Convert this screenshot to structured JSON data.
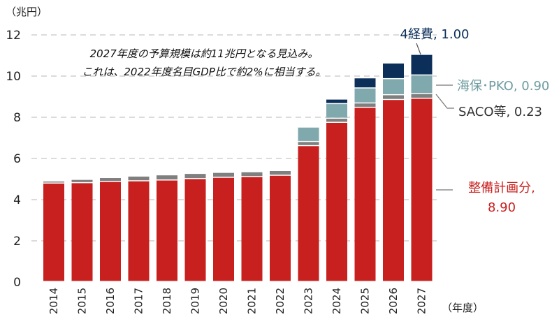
{
  "chart_data": {
    "type": "bar",
    "stacked": true,
    "y_unit_label": "（兆円）",
    "x_unit_label": "（年度）",
    "ylim": [
      0,
      12
    ],
    "yticks": [
      0,
      2,
      4,
      6,
      8,
      10,
      12
    ],
    "grid": true,
    "categories": [
      "2014",
      "2015",
      "2016",
      "2017",
      "2018",
      "2019",
      "2020",
      "2021",
      "2022",
      "2023",
      "2024",
      "2025",
      "2026",
      "2027"
    ],
    "annotation": [
      "2027年度の予算規模は約11兆円となる見込み。",
      "これは、2022年度名目GDP比で約2%に相当する。"
    ],
    "series": [
      {
        "name": "整備計画分",
        "color": "#C8201E",
        "values": [
          4.78,
          4.8,
          4.86,
          4.89,
          4.93,
          5.0,
          5.06,
          5.1,
          5.16,
          6.6,
          7.73,
          8.46,
          8.84,
          8.9
        ]
      },
      {
        "name": "SACO等",
        "color": "#7F7F7F",
        "values": [
          0.1,
          0.16,
          0.19,
          0.23,
          0.25,
          0.25,
          0.24,
          0.23,
          0.23,
          0.2,
          0.2,
          0.21,
          0.23,
          0.23
        ]
      },
      {
        "name": "海保･PKO",
        "color": "#80A9AD",
        "values": [
          0,
          0,
          0,
          0,
          0,
          0,
          0,
          0,
          0,
          0.7,
          0.71,
          0.73,
          0.78,
          0.9
        ]
      },
      {
        "name": "4経費",
        "color": "#0C2F5A",
        "values": [
          0,
          0,
          0,
          0,
          0,
          0,
          0,
          0,
          0,
          0,
          0.22,
          0.49,
          0.76,
          1.0
        ]
      }
    ],
    "data_labels": {
      "four_costs": "4経費, 1.00",
      "coast_guard": "海保･PKO, 0.90",
      "saco": "SACO等, 0.23",
      "plan_line1": "整備計画分,",
      "plan_line2": "8.90"
    }
  }
}
